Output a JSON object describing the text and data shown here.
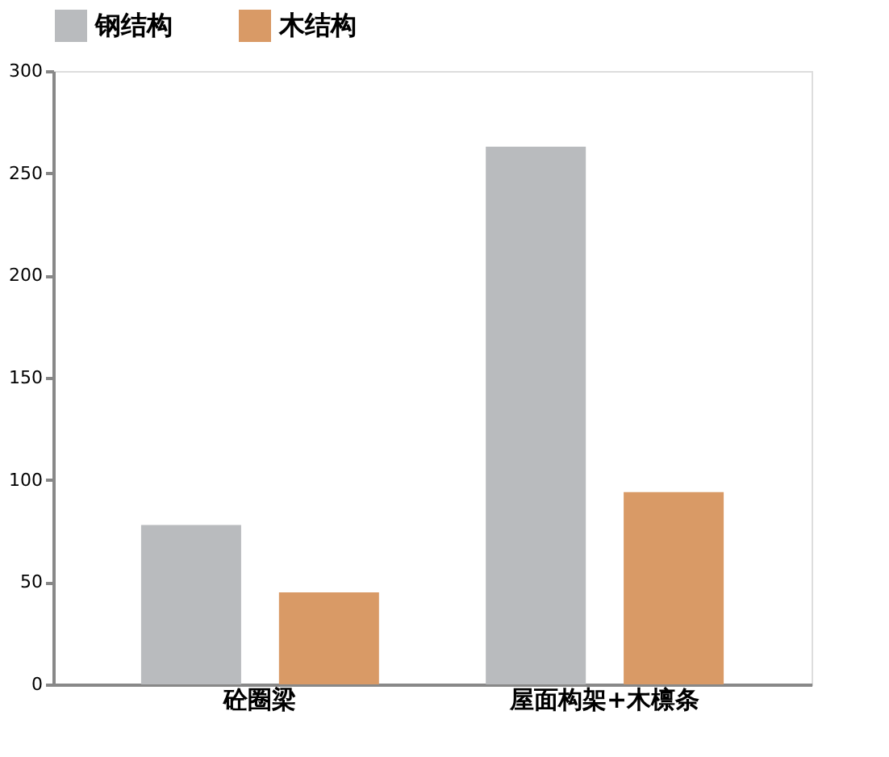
{
  "chart_data": {
    "type": "bar",
    "categories": [
      "砼圈梁",
      "屋面构架+木檩条"
    ],
    "series": [
      {
        "name": "钢结构",
        "color": "#b9bbbe",
        "values": [
          78,
          263
        ]
      },
      {
        "name": "木结构",
        "color": "#d99a66",
        "values": [
          45,
          94
        ]
      }
    ],
    "ylim": [
      0,
      300
    ],
    "yticks": [
      0,
      50,
      100,
      150,
      200,
      250,
      300
    ],
    "grid": false,
    "legend": "top"
  }
}
